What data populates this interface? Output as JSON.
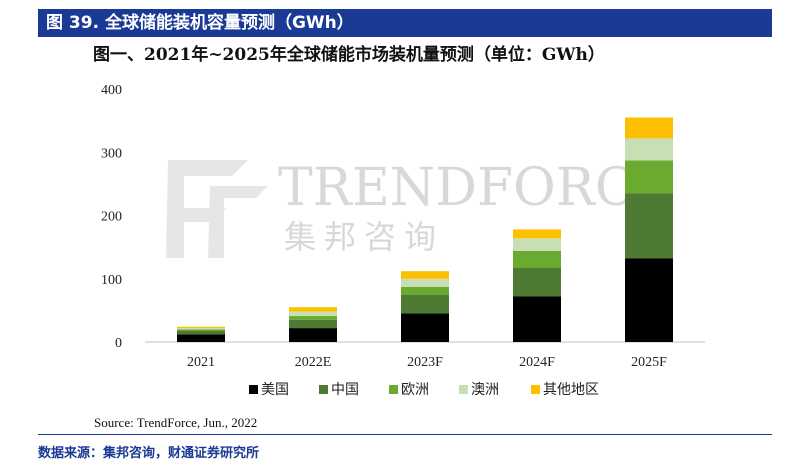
{
  "header": {
    "title": "图 39. 全球储能装机容量预测（GWh）"
  },
  "chart_data": {
    "type": "bar",
    "stacked": true,
    "title": "图一、2021年~2025年全球储能市场装机量预测（单位：GWh）",
    "categories": [
      "2021",
      "2022E",
      "2023F",
      "2024F",
      "2025F"
    ],
    "series": [
      {
        "name": "美国",
        "color": "#000000",
        "values": [
          12,
          22,
          45,
          72,
          132
        ]
      },
      {
        "name": "中国",
        "color": "#4e7a33",
        "values": [
          6,
          13,
          30,
          45,
          103
        ]
      },
      {
        "name": "欧洲",
        "color": "#6aaa2e",
        "values": [
          2,
          6,
          12,
          27,
          52
        ]
      },
      {
        "name": "澳洲",
        "color": "#c8dfb4",
        "values": [
          2,
          7,
          13,
          20,
          35
        ]
      },
      {
        "name": "其他地区",
        "color": "#fcc000",
        "values": [
          2,
          7,
          12,
          14,
          33
        ]
      }
    ],
    "yticks": [
      0,
      100,
      200,
      300,
      400
    ],
    "ylim": [
      0,
      400
    ],
    "grid": false,
    "legend_position": "bottom"
  },
  "watermark": {
    "brand": "TRENDFORCE",
    "brand_cn": "集邦咨询"
  },
  "source": "Source: TrendForce, Jun., 2022",
  "footer": {
    "note": "数据来源：集邦咨询，财通证券研究所"
  }
}
